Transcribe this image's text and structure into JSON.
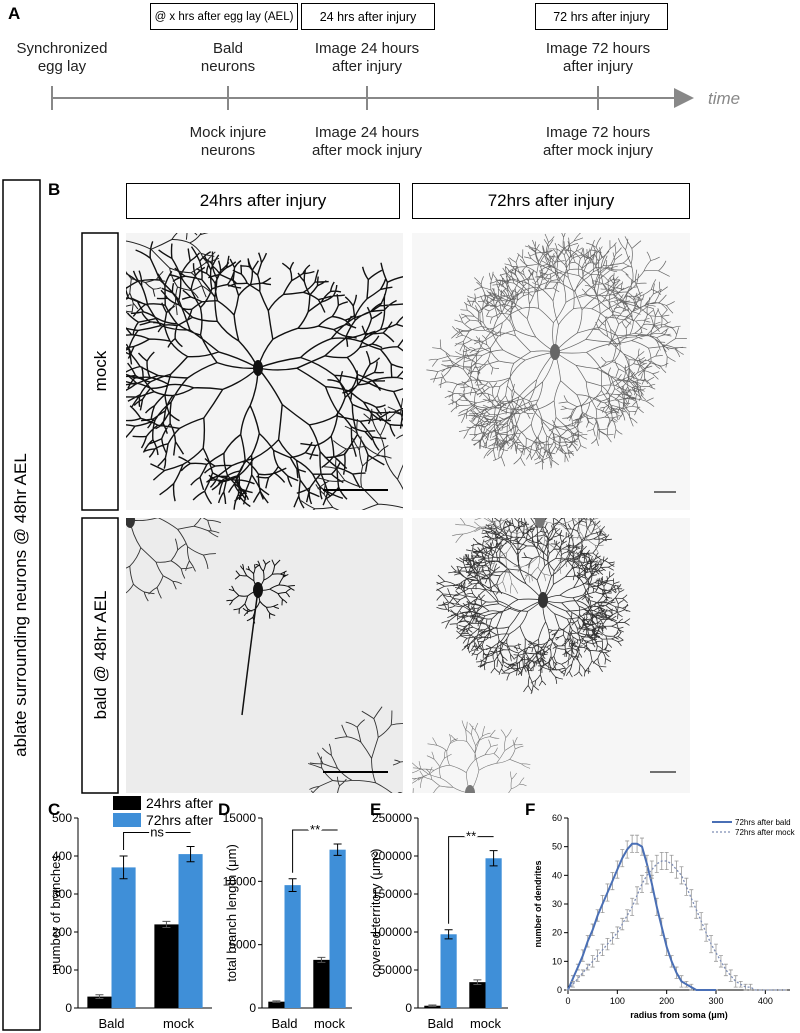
{
  "panel_labels": [
    "A",
    "B",
    "C",
    "D",
    "E",
    "F"
  ],
  "timeline": {
    "boxes": [
      "@ x hrs after egg lay (AEL)",
      "24 hrs after injury",
      "72 hrs after injury"
    ],
    "top_labels": [
      "Synchronized egg lay",
      "Bald neurons",
      "Image 24 hours after injury",
      "Image 72 hours after injury"
    ],
    "bottom_labels": [
      "Mock injure neurons",
      "Image 24 hours after mock injury",
      "Image 72 hours after mock injury"
    ],
    "axis_label": "time"
  },
  "panel_b": {
    "side_label": "ablate surrounding neurons @ 48hr AEL",
    "column_headers": [
      "24hrs after injury",
      "72hrs after injury"
    ],
    "row_labels": [
      "mock",
      "bald @ 48hr AEL"
    ]
  },
  "chart_data": [
    {
      "type": "bar",
      "ylabel": "number of branches",
      "categories": [
        "Bald",
        "mock"
      ],
      "series": [
        {
          "name": "24hrs after",
          "color": "#000000",
          "values": [
            30,
            220
          ],
          "errors": [
            5,
            8
          ]
        },
        {
          "name": "72hrs after",
          "color": "#3f8fd8",
          "values": [
            370,
            405
          ],
          "errors": [
            30,
            20
          ]
        }
      ],
      "ylim": [
        0,
        500
      ],
      "yticks": [
        0,
        100,
        200,
        300,
        400,
        500
      ],
      "annotation": "ns",
      "legend": true
    },
    {
      "type": "bar",
      "ylabel": "total branch length (μm)",
      "categories": [
        "Bald",
        "mock"
      ],
      "series": [
        {
          "name": "24hrs after",
          "color": "#000000",
          "values": [
            500,
            3800
          ],
          "errors": [
            60,
            200
          ]
        },
        {
          "name": "72hrs after",
          "color": "#3f8fd8",
          "values": [
            9700,
            12500
          ],
          "errors": [
            500,
            450
          ]
        }
      ],
      "ylim": [
        0,
        15000
      ],
      "yticks": [
        0,
        5000,
        10000,
        15000
      ],
      "annotation": "**",
      "legend": false
    },
    {
      "type": "bar",
      "ylabel": "covered territory (μm²)",
      "categories": [
        "Bald",
        "mock"
      ],
      "series": [
        {
          "name": "24hrs after",
          "color": "#000000",
          "values": [
            3000,
            34000
          ],
          "errors": [
            1000,
            3000
          ]
        },
        {
          "name": "72hrs after",
          "color": "#3f8fd8",
          "values": [
            97000,
            197000
          ],
          "errors": [
            6000,
            10000
          ]
        }
      ],
      "ylim": [
        0,
        250000
      ],
      "yticks": [
        0,
        50000,
        100000,
        150000,
        200000,
        250000
      ],
      "annotation": "**",
      "legend": false
    },
    {
      "type": "line",
      "xlabel": "radius from soma (μm)",
      "ylabel": "number of dendrites",
      "x": [
        0,
        10,
        20,
        30,
        40,
        50,
        60,
        70,
        80,
        90,
        100,
        110,
        120,
        130,
        140,
        150,
        160,
        170,
        180,
        190,
        200,
        210,
        220,
        230,
        240,
        250,
        260,
        270,
        280,
        290,
        300,
        310,
        320,
        330,
        340,
        350,
        360,
        370,
        380,
        390,
        400,
        410,
        420,
        430,
        440
      ],
      "series": [
        {
          "name": "72hrs after bald",
          "color": "#4a6fb5",
          "dash": false,
          "values": [
            0,
            4,
            8,
            12,
            17,
            21,
            26,
            30,
            34,
            38,
            42,
            46,
            49,
            51,
            51,
            50,
            44,
            37,
            29,
            22,
            15,
            10,
            6,
            3,
            2,
            1,
            0,
            0,
            0,
            0,
            0,
            null,
            null,
            null,
            null,
            null,
            null,
            null,
            null,
            null,
            null,
            null,
            null,
            null,
            null
          ],
          "errors": [
            0,
            1,
            1,
            2,
            2,
            2,
            2,
            3,
            3,
            3,
            3,
            3,
            3,
            3,
            3,
            3,
            3,
            3,
            3,
            3,
            3,
            2,
            2,
            2,
            1,
            1,
            0,
            0,
            0,
            0,
            0,
            null,
            null,
            null,
            null,
            null,
            null,
            null,
            null,
            null,
            null,
            null,
            null,
            null,
            null
          ]
        },
        {
          "name": "72hrs after mock",
          "color": "#7d8db5",
          "dash": true,
          "values": [
            0,
            2,
            4,
            6,
            8,
            10,
            12,
            14,
            16,
            18,
            20,
            23,
            26,
            29,
            33,
            37,
            40,
            42,
            44,
            45,
            45,
            44,
            42,
            40,
            36,
            32,
            28,
            24,
            20,
            16,
            13,
            10,
            7,
            5,
            3,
            2,
            1,
            1,
            0,
            0,
            0,
            0,
            0,
            0,
            0
          ],
          "errors": [
            0,
            1,
            1,
            1,
            1,
            2,
            2,
            2,
            2,
            2,
            2,
            2,
            2,
            3,
            3,
            3,
            3,
            3,
            3,
            3,
            3,
            3,
            3,
            3,
            3,
            3,
            3,
            3,
            3,
            3,
            3,
            2,
            2,
            2,
            2,
            1,
            1,
            1,
            0,
            0,
            0,
            0,
            0,
            0,
            0
          ]
        }
      ],
      "xlim": [
        0,
        450
      ],
      "xticks": [
        0,
        100,
        200,
        300,
        400
      ],
      "ylim": [
        0,
        60
      ],
      "yticks": [
        0,
        10,
        20,
        30,
        40,
        50,
        60
      ]
    }
  ]
}
